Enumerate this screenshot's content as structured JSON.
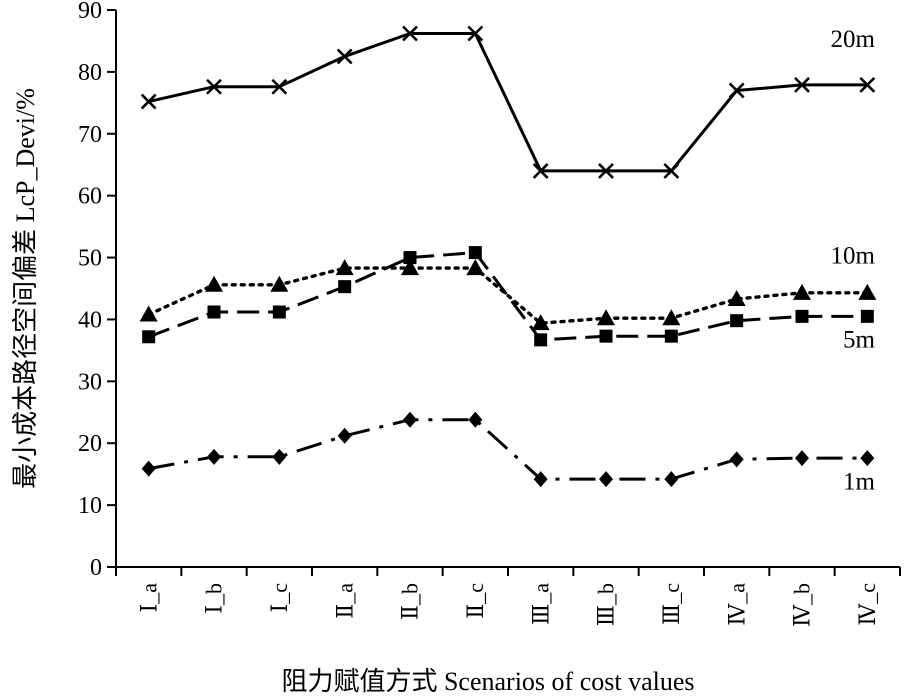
{
  "chart_data": {
    "type": "line",
    "ylabel": "最小成本路径空间偏差 LcP_Devi/%",
    "xlabel": "阻力赋值方式 Scenarios of cost values",
    "ylim": [
      0,
      90
    ],
    "yticks": [
      0,
      10,
      20,
      30,
      40,
      50,
      60,
      70,
      80,
      90
    ],
    "grid": false,
    "categories": [
      "Ⅰ_a",
      "Ⅰ_b",
      "Ⅰ_c",
      "Ⅱ_a",
      "Ⅱ_b",
      "Ⅱ_c",
      "Ⅲ_a",
      "Ⅲ_b",
      "Ⅲ_c",
      "Ⅳ_a",
      "Ⅳ_b",
      "Ⅳ_c"
    ],
    "series": [
      {
        "name": "20m",
        "marker": "x",
        "line": "solid",
        "values": [
          75.2,
          77.6,
          77.6,
          82.5,
          86.2,
          86.2,
          64.0,
          64.0,
          64.0,
          77.0,
          77.9,
          77.9
        ]
      },
      {
        "name": "10m",
        "marker": "triangle",
        "line": "dotted",
        "values": [
          40.8,
          45.6,
          45.6,
          48.3,
          48.3,
          48.3,
          39.4,
          40.2,
          40.2,
          43.3,
          44.3,
          44.3
        ]
      },
      {
        "name": "5m",
        "marker": "square",
        "line": "dashed",
        "values": [
          37.2,
          41.2,
          41.2,
          45.3,
          50.0,
          50.8,
          36.7,
          37.3,
          37.3,
          39.8,
          40.5,
          40.5
        ]
      },
      {
        "name": "1m",
        "marker": "diamond",
        "line": "dash-dot",
        "values": [
          15.9,
          17.8,
          17.8,
          21.2,
          23.8,
          23.8,
          14.2,
          14.2,
          14.2,
          17.4,
          17.6,
          17.6
        ]
      }
    ]
  }
}
